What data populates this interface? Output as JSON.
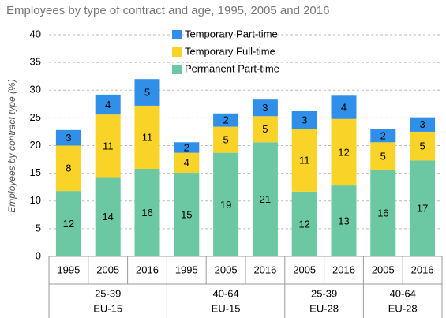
{
  "chart_data": {
    "type": "bar",
    "stacked": true,
    "title": "Employees by type of contract and age, 1995, 2005 and 2016",
    "y_label": "Employees by contract type (%)",
    "groups": [
      {
        "name": "25-39",
        "region": "EU-15",
        "categories": [
          "1995",
          "2005",
          "2016"
        ]
      },
      {
        "name": "40-64",
        "region": "EU-15",
        "categories": [
          "1995",
          "2005",
          "2016"
        ]
      },
      {
        "name": "25-39",
        "region": "EU-28",
        "categories": [
          "2005",
          "2016"
        ]
      },
      {
        "name": "40-64",
        "region": "EU-28",
        "categories": [
          "2005",
          "2016"
        ]
      }
    ],
    "series": [
      {
        "name": "Permanent Part-time",
        "color": "#6cc8a2",
        "values": [
          11.8,
          14.3,
          15.8,
          15.1,
          18.7,
          20.6,
          11.7,
          12.8,
          15.6,
          17.3
        ],
        "value_labels": [
          "12",
          "14",
          "16",
          "15",
          "19",
          "21",
          "12",
          "13",
          "16",
          "17"
        ]
      },
      {
        "name": "Temporary Full-time",
        "color": "#fad328",
        "values": [
          8.2,
          11.3,
          11.4,
          3.6,
          4.7,
          4.7,
          11.3,
          12.0,
          5.0,
          5.2
        ],
        "value_labels": [
          "8",
          "11",
          "11",
          "4",
          "5",
          "5",
          "11",
          "12",
          "5",
          "5"
        ]
      },
      {
        "name": "Temporary Part-time",
        "color": "#2f8fe9",
        "values": [
          2.8,
          3.6,
          4.8,
          1.9,
          2.4,
          3.0,
          3.2,
          4.2,
          2.4,
          2.6
        ],
        "value_labels": [
          "3",
          "4",
          "5",
          "2",
          "2",
          "3",
          "3",
          "4",
          "2",
          "3"
        ]
      }
    ],
    "ylim": [
      0,
      40
    ],
    "yticks": [
      0,
      5,
      10,
      15,
      20,
      25,
      30,
      35,
      40
    ],
    "grid": true
  }
}
